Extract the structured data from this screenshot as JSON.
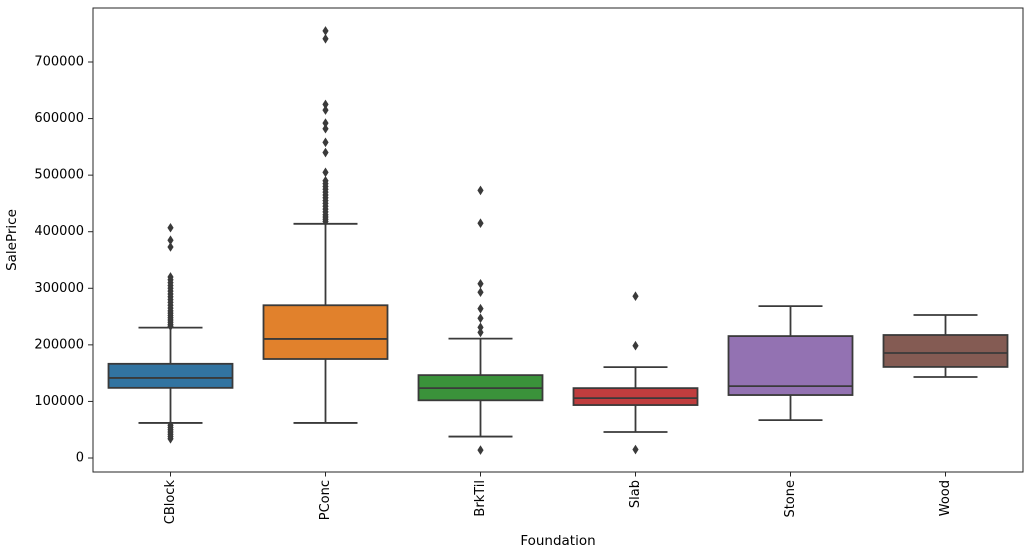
{
  "chart_data": {
    "type": "box",
    "title": "",
    "xlabel": "Foundation",
    "ylabel": "SalePrice",
    "categories": [
      "CBlock",
      "PConc",
      "BrkTil",
      "Slab",
      "Stone",
      "Wood"
    ],
    "ylim": [
      -24747,
      795455
    ],
    "yticks": [
      0,
      100000,
      200000,
      300000,
      400000,
      500000,
      600000,
      700000
    ],
    "grid": false,
    "legend": "none",
    "background": "#ffffff",
    "frame_color": "#262626",
    "edge_color": "#3a3a3a",
    "series": [
      {
        "name": "CBlock",
        "color": "#3274a1",
        "whisker_low": 62000,
        "q1": 124000,
        "median": 141500,
        "q3": 166500,
        "whisker_high": 230500,
        "outliers": [
          407000,
          385000,
          373000,
          320000,
          315000,
          310000,
          305000,
          300000,
          295000,
          290000,
          285000,
          280000,
          275000,
          270000,
          265000,
          260000,
          256000,
          252000,
          248000,
          244000,
          240000,
          236000,
          233000,
          58000,
          54000,
          50000,
          46000,
          42000,
          38000,
          34000
        ]
      },
      {
        "name": "PConc",
        "color": "#e1812c",
        "whisker_low": 62000,
        "q1": 175000,
        "median": 210500,
        "q3": 270000,
        "whisker_high": 414000,
        "outliers": [
          755000,
          741000,
          625000,
          615000,
          592000,
          582000,
          558000,
          540000,
          505000,
          490000,
          485000,
          480000,
          475000,
          470000,
          465000,
          460000,
          455000,
          450000,
          445000,
          440000,
          435000,
          430000,
          426000,
          422000,
          418000
        ]
      },
      {
        "name": "BrkTil",
        "color": "#3a923a",
        "whisker_low": 37900,
        "q1": 102000,
        "median": 123500,
        "q3": 146500,
        "whisker_high": 211000,
        "outliers": [
          473000,
          415000,
          308000,
          293000,
          264000,
          247000,
          231000,
          222000,
          14000
        ]
      },
      {
        "name": "Slab",
        "color": "#c03d3e",
        "whisker_low": 46000,
        "q1": 93600,
        "median": 105900,
        "q3": 123500,
        "whisker_high": 160700,
        "outliers": [
          286000,
          198500,
          15000
        ]
      },
      {
        "name": "Stone",
        "color": "#9372b2",
        "whisker_low": 67000,
        "q1": 111300,
        "median": 127000,
        "q3": 215500,
        "whisker_high": 268500,
        "outliers": []
      },
      {
        "name": "Wood",
        "color": "#845b53",
        "whisker_low": 143200,
        "q1": 161000,
        "median": 185600,
        "q3": 217400,
        "whisker_high": 252800,
        "outliers": []
      }
    ]
  }
}
